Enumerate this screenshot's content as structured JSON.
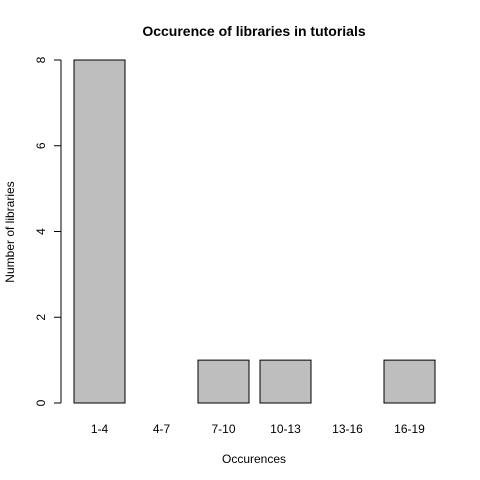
{
  "chart_data": {
    "type": "bar",
    "title": "Occurence of libraries in tutorials",
    "xlabel": "Occurences",
    "ylabel": "Number of libraries",
    "categories": [
      "1-4",
      "4-7",
      "7-10",
      "10-13",
      "13-16",
      "16-19"
    ],
    "values": [
      8,
      0,
      1,
      1,
      0,
      1
    ],
    "ylim": [
      0,
      8
    ],
    "yticks": [
      0,
      2,
      4,
      6,
      8
    ],
    "bar_color": "#bebebe",
    "grid": false,
    "legend": "none"
  }
}
